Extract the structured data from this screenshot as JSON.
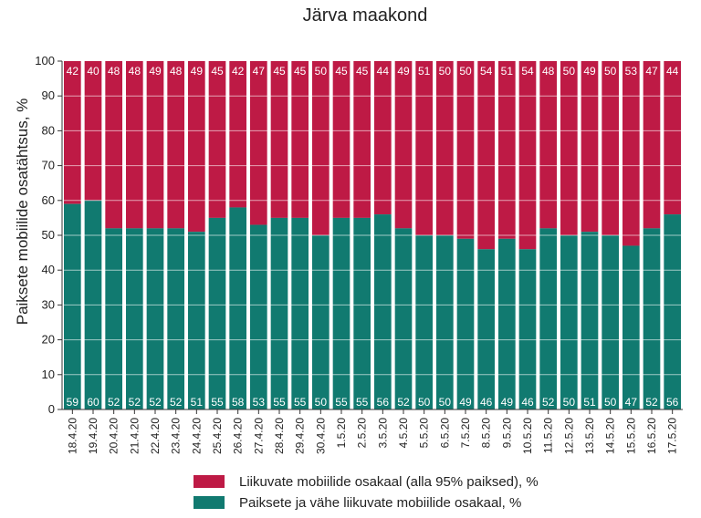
{
  "chart_data": {
    "type": "bar",
    "stacked": true,
    "title": "Järva maakond",
    "ylabel": "Paiksete mobiilide osatähtsus, %",
    "xlabel": "",
    "ylim": [
      0,
      100
    ],
    "yticks": [
      0,
      10,
      20,
      30,
      40,
      50,
      60,
      70,
      80,
      90,
      100
    ],
    "grid": true,
    "legend_position": "bottom",
    "categories": [
      "18.4.20",
      "19.4.20",
      "20.4.20",
      "21.4.20",
      "22.4.20",
      "23.4.20",
      "24.4.20",
      "25.4.20",
      "26.4.20",
      "27.4.20",
      "28.4.20",
      "29.4.20",
      "30.4.20",
      "1.5.20",
      "2.5.20",
      "3.5.20",
      "4.5.20",
      "5.5.20",
      "6.5.20",
      "7.5.20",
      "8.5.20",
      "9.5.20",
      "10.5.20",
      "11.5.20",
      "12.5.20",
      "13.5.20",
      "14.5.20",
      "15.5.20",
      "16.5.20",
      "17.5.20"
    ],
    "series": [
      {
        "name": "Paiksete ja vähe liikuvate mobiilide osakaal, %",
        "color": "#117a70",
        "values": [
          59,
          60,
          52,
          52,
          52,
          52,
          51,
          55,
          58,
          53,
          55,
          55,
          50,
          55,
          55,
          56,
          52,
          50,
          50,
          49,
          46,
          49,
          46,
          52,
          50,
          51,
          50,
          47,
          52,
          56
        ]
      },
      {
        "name": "Liikuvate mobiilide osakaal (alla 95% paiksed), %",
        "color": "#be1a45",
        "values": [
          42,
          40,
          48,
          48,
          49,
          48,
          49,
          45,
          42,
          47,
          45,
          45,
          50,
          45,
          45,
          44,
          49,
          51,
          50,
          50,
          54,
          51,
          54,
          48,
          50,
          49,
          50,
          53,
          47,
          44
        ]
      }
    ]
  }
}
